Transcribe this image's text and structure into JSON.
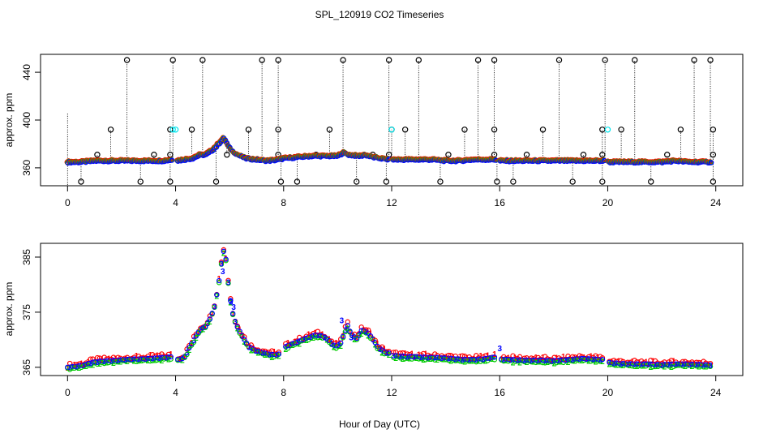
{
  "chart_data": {
    "type": "scatter",
    "title": "SPL_120919  CO2 Timeseries",
    "xlabel": "Hour of Day (UTC)",
    "colors": {
      "series1": "#ff0000",
      "series2": "#0000ff",
      "series3": "#00cc00",
      "cyan": "#00e5ee",
      "black": "#000000"
    },
    "panels": [
      {
        "id": "top",
        "ylabel": "approx. ppm",
        "xlim": [
          -1,
          25
        ],
        "ylim": [
          345,
          455
        ],
        "xticks": [
          0,
          4,
          8,
          12,
          16,
          20,
          24
        ],
        "xtick_labels": [
          "0",
          "4",
          "8",
          "12",
          "16",
          "20",
          "24"
        ],
        "yticks": [
          360,
          400,
          440
        ],
        "ytick_labels": [
          "360",
          "400",
          "440"
        ],
        "baseline": {
          "x": [
            0.0,
            0.5,
            1.0,
            1.5,
            2.0,
            2.5,
            3.0,
            3.5,
            3.9,
            4.0,
            4.3,
            4.6,
            4.9,
            5.1,
            5.3,
            5.5,
            5.65,
            5.8,
            5.95,
            6.1,
            6.3,
            6.6,
            7.0,
            7.4,
            7.8,
            8.0,
            8.5,
            9.0,
            9.5,
            10.0,
            10.2,
            10.4,
            10.8,
            11.0,
            11.3,
            11.6,
            11.9,
            12.0,
            12.5,
            13.0,
            13.5,
            14.0,
            14.5,
            15.0,
            15.5,
            15.9,
            16.0,
            16.5,
            17.0,
            17.5,
            18.0,
            18.5,
            19.0,
            19.5,
            19.9,
            20.0,
            20.5,
            21.0,
            21.5,
            22.0,
            22.5,
            23.0,
            23.5,
            23.8
          ],
          "y": [
            365,
            365,
            366,
            366,
            366,
            366,
            366,
            366,
            367,
            366,
            367,
            368,
            371,
            371,
            374,
            378,
            382,
            385,
            378,
            374,
            371,
            368,
            367,
            366,
            367,
            368,
            369,
            370,
            370,
            370,
            373,
            371,
            370,
            371,
            369,
            368,
            367,
            367,
            367,
            367,
            367,
            366,
            366,
            367,
            367,
            367,
            366,
            366,
            366,
            366,
            366,
            366,
            366,
            366,
            366,
            365,
            365,
            365,
            365,
            365,
            366,
            365,
            365,
            365
          ]
        },
        "spikes_high": [
          2.2,
          3.9,
          5.0,
          7.2,
          7.8,
          10.2,
          11.9,
          13.0,
          15.2,
          15.8,
          18.2,
          19.9,
          21.0,
          23.2,
          23.8
        ],
        "spikes_mid": [
          1.6,
          3.8,
          4.6,
          6.7,
          7.8,
          9.7,
          12.0,
          12.5,
          14.7,
          15.8,
          17.6,
          19.8,
          20.5,
          22.7,
          23.9
        ],
        "spikes_low": [
          1.1,
          3.2,
          3.8,
          5.9,
          7.8,
          9.2,
          11.3,
          11.9,
          14.1,
          15.8,
          17.0,
          19.1,
          19.8,
          22.2,
          23.9
        ],
        "spikes_bottom": [
          0.5,
          2.7,
          3.8,
          5.5,
          7.9,
          8.5,
          10.7,
          11.8,
          13.8,
          15.9,
          16.5,
          18.7,
          19.8,
          21.6,
          23.9
        ],
        "cyan_points": [
          {
            "x": 3.9,
            "y": 392
          },
          {
            "x": 4.0,
            "y": 392
          },
          {
            "x": 12.0,
            "y": 392
          },
          {
            "x": 20.0,
            "y": 392
          }
        ]
      },
      {
        "id": "bottom",
        "ylabel": "approx. ppm",
        "xlim": [
          -1,
          25
        ],
        "ylim": [
          363.5,
          387.5
        ],
        "xticks": [
          0,
          4,
          8,
          12,
          16,
          20,
          24
        ],
        "xtick_labels": [
          "0",
          "4",
          "8",
          "12",
          "16",
          "20",
          "24"
        ],
        "yticks": [
          365,
          375,
          385
        ],
        "ytick_labels": [
          "365",
          "375",
          "385"
        ],
        "series_labels": [
          "1",
          "2",
          "3"
        ],
        "x": [
          0.0,
          0.3,
          0.6,
          0.9,
          1.2,
          1.5,
          1.8,
          2.1,
          2.4,
          2.7,
          3.0,
          3.3,
          3.6,
          3.85,
          4.0,
          4.3,
          4.5,
          4.7,
          4.9,
          5.1,
          5.3,
          5.45,
          5.55,
          5.65,
          5.72,
          5.8,
          5.88,
          5.95,
          6.05,
          6.15,
          6.3,
          6.5,
          6.7,
          7.0,
          7.3,
          7.6,
          7.85,
          8.0,
          8.3,
          8.6,
          8.9,
          9.2,
          9.5,
          9.7,
          9.9,
          10.1,
          10.2,
          10.35,
          10.5,
          10.7,
          10.9,
          11.1,
          11.3,
          11.5,
          11.75,
          11.95,
          12.0,
          12.5,
          13.0,
          13.5,
          14.0,
          14.5,
          15.0,
          15.5,
          15.9,
          16.0,
          16.5,
          17.0,
          17.5,
          18.0,
          18.5,
          19.0,
          19.5,
          19.9,
          20.0,
          20.5,
          21.0,
          21.5,
          22.0,
          22.5,
          23.0,
          23.5,
          23.85
        ],
        "y1": [
          365.0,
          365.2,
          365.4,
          365.9,
          366.1,
          366.2,
          366.3,
          366.4,
          366.5,
          366.5,
          366.6,
          366.7,
          366.8,
          366.9,
          366.4,
          366.6,
          368.5,
          370.2,
          371.8,
          372.4,
          374.0,
          376.2,
          378.8,
          382.0,
          385.0,
          386.4,
          384.2,
          380.5,
          376.5,
          374.0,
          372.2,
          370.4,
          368.8,
          368.0,
          367.6,
          367.3,
          367.4,
          368.6,
          369.2,
          369.8,
          370.4,
          370.9,
          370.6,
          369.8,
          368.8,
          369.2,
          370.6,
          372.8,
          371.0,
          370.2,
          371.8,
          371.4,
          370.2,
          368.6,
          367.8,
          367.5,
          367.2,
          367.0,
          366.9,
          366.8,
          366.7,
          366.5,
          366.4,
          366.6,
          366.9,
          366.5,
          366.4,
          366.3,
          366.3,
          366.2,
          366.4,
          366.6,
          366.5,
          366.4,
          365.9,
          365.7,
          365.6,
          365.6,
          365.5,
          365.6,
          365.6,
          365.5,
          365.4
        ]
      }
    ]
  }
}
